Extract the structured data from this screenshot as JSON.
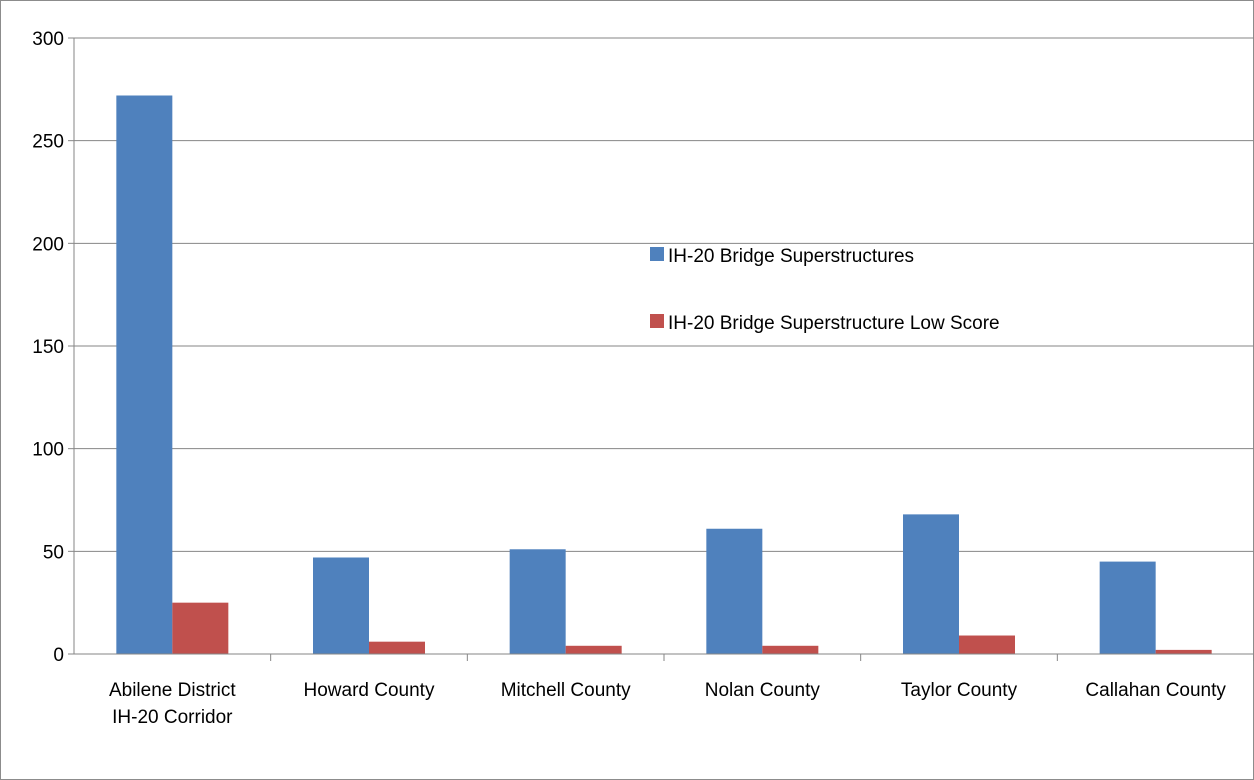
{
  "chart_data": {
    "type": "bar",
    "categories": [
      [
        "Abilene District",
        "IH-20 Corridor"
      ],
      [
        "Howard County"
      ],
      [
        "Mitchell County"
      ],
      [
        "Nolan County"
      ],
      [
        "Taylor County"
      ],
      [
        "Callahan County"
      ]
    ],
    "series": [
      {
        "name": "IH-20 Bridge Superstructures",
        "color": "#4f81bd",
        "values": [
          272,
          47,
          51,
          61,
          68,
          45
        ]
      },
      {
        "name": "IH-20 Bridge Superstructure Low Score",
        "color": "#c0504d",
        "values": [
          25,
          6,
          4,
          4,
          9,
          2
        ]
      }
    ],
    "ylim": [
      0,
      300
    ],
    "yticks": [
      "0",
      "50",
      "100",
      "150",
      "200",
      "250",
      "300"
    ],
    "grid": true,
    "legend_position": "inside-right",
    "title": "",
    "xlabel": "",
    "ylabel": ""
  }
}
